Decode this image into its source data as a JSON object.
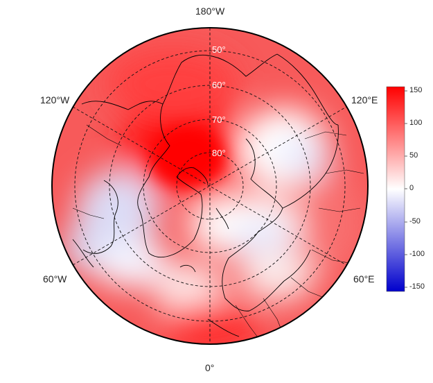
{
  "map": {
    "projection": "north-polar-stereographic",
    "min_latitude": 40,
    "longitude_labels": {
      "top": "180°W",
      "bottom": "0°",
      "upper_left": "120°W",
      "upper_right": "120°E",
      "lower_left": "60°W",
      "lower_right": "60°E"
    },
    "latitude_labels": [
      "50°",
      "60°",
      "70°",
      "80°"
    ],
    "gridlines": "dashed",
    "coastlines": true,
    "country_borders": true
  },
  "colorbar": {
    "ticks": [
      "150",
      "100",
      "50",
      "0",
      "-50",
      "-100",
      "-150"
    ],
    "range": [
      -160,
      160
    ],
    "colors": {
      "low": "#0000d0",
      "mid": "#ffffff",
      "high": "#ff0000"
    }
  },
  "field": {
    "description_colors": {
      "positive": "#ff0000",
      "negative": "#0000d0"
    }
  }
}
